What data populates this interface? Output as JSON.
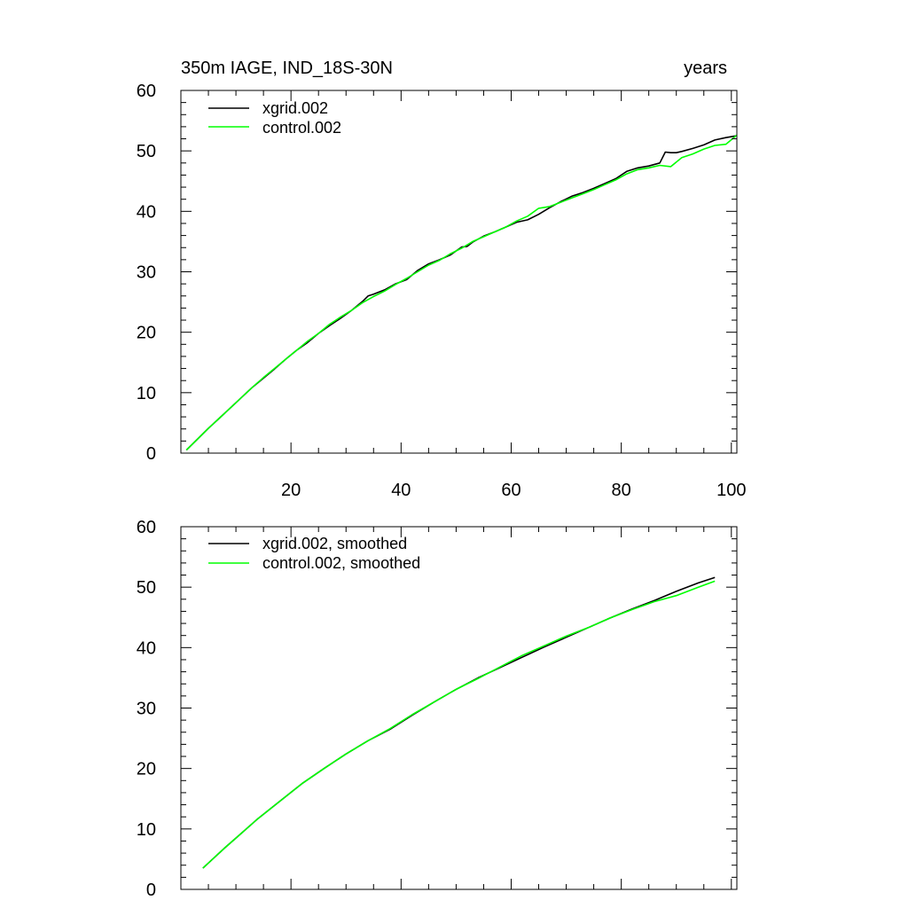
{
  "chart_data": [
    {
      "type": "line",
      "title_left": "350m IAGE, IND_18S-30N",
      "title_right": "years",
      "xlabel": "",
      "ylabel": "",
      "xlim": [
        0,
        101
      ],
      "ylim": [
        0,
        60
      ],
      "x_ticks": [
        20,
        40,
        60,
        80,
        100
      ],
      "x_tick_labels": [
        "20",
        "40",
        "60",
        "80",
        "100"
      ],
      "y_ticks": [
        0,
        10,
        20,
        30,
        40,
        50,
        60
      ],
      "y_tick_labels": [
        "0",
        "10",
        "20",
        "30",
        "40",
        "50",
        "60"
      ],
      "legend_position": "top-left",
      "series": [
        {
          "name": "xgrid.002",
          "color": "#000000",
          "x": [
            1,
            3,
            5,
            7,
            9,
            11,
            13,
            15,
            17,
            19,
            21,
            23,
            25,
            27,
            29,
            31,
            33,
            34,
            35,
            37,
            39,
            41,
            43,
            45,
            47,
            49,
            51,
            52,
            53,
            55,
            57,
            59,
            61,
            63,
            65,
            67,
            69,
            71,
            73,
            75,
            77,
            79,
            81,
            83,
            85,
            87,
            88,
            89,
            90,
            91,
            93,
            95,
            97,
            99,
            101
          ],
          "values": [
            0.5,
            2.3,
            4.1,
            5.8,
            7.5,
            9.2,
            10.9,
            12.4,
            13.9,
            15.5,
            17.0,
            18.3,
            19.8,
            21.1,
            22.3,
            23.6,
            25.1,
            26.0,
            26.3,
            27.0,
            28.0,
            28.7,
            30.2,
            31.3,
            32.0,
            32.8,
            34.1,
            34.2,
            34.9,
            35.9,
            36.6,
            37.4,
            38.2,
            38.6,
            39.5,
            40.6,
            41.6,
            42.5,
            43.1,
            43.8,
            44.6,
            45.4,
            46.6,
            47.2,
            47.5,
            48.0,
            49.8,
            49.7,
            49.7,
            49.9,
            50.4,
            51.0,
            51.8,
            52.2,
            52.5
          ]
        },
        {
          "name": "control.002",
          "color": "#00ff00",
          "x": [
            1,
            3,
            5,
            7,
            9,
            11,
            13,
            15,
            17,
            19,
            21,
            23,
            25,
            27,
            29,
            31,
            33,
            35,
            37,
            39,
            41,
            43,
            45,
            47,
            49,
            51,
            53,
            55,
            57,
            59,
            61,
            63,
            65,
            67,
            69,
            71,
            73,
            75,
            77,
            79,
            81,
            83,
            85,
            87,
            89,
            91,
            93,
            95,
            97,
            99,
            101
          ],
          "values": [
            0.5,
            2.3,
            4.1,
            5.8,
            7.5,
            9.2,
            10.9,
            12.5,
            14.0,
            15.5,
            17.0,
            18.5,
            19.8,
            21.3,
            22.5,
            23.6,
            24.9,
            25.9,
            26.8,
            27.9,
            28.9,
            30.0,
            31.1,
            31.9,
            33.0,
            33.9,
            35.0,
            35.8,
            36.6,
            37.4,
            38.4,
            39.2,
            40.5,
            40.8,
            41.5,
            42.2,
            42.9,
            43.6,
            44.4,
            45.2,
            46.2,
            46.9,
            47.2,
            47.6,
            47.4,
            48.9,
            49.5,
            50.3,
            50.9,
            51.1,
            52.6
          ]
        }
      ]
    },
    {
      "type": "line",
      "title_left": "",
      "title_right": "",
      "xlabel": "",
      "ylabel": "",
      "xlim": [
        0,
        101
      ],
      "ylim": [
        0,
        60
      ],
      "x_ticks": [
        20,
        40,
        60,
        80,
        100
      ],
      "x_tick_labels": [],
      "y_ticks": [
        0,
        10,
        20,
        30,
        40,
        50,
        60
      ],
      "y_tick_labels": [
        "0",
        "10",
        "20",
        "30",
        "40",
        "50",
        "60"
      ],
      "legend_position": "top-left",
      "series": [
        {
          "name": "xgrid.002, smoothed",
          "color": "#000000",
          "x": [
            4,
            6,
            8,
            10,
            14,
            18,
            22,
            26,
            30,
            34,
            38,
            42,
            46,
            50,
            54,
            58,
            62,
            66,
            70,
            74,
            78,
            82,
            86,
            90,
            94,
            97
          ],
          "values": [
            3.5,
            5.2,
            6.9,
            8.5,
            11.7,
            14.6,
            17.5,
            20.0,
            22.4,
            24.6,
            26.5,
            28.8,
            31.0,
            33.1,
            35.0,
            36.7,
            38.4,
            40.1,
            41.7,
            43.3,
            44.9,
            46.4,
            47.8,
            49.3,
            50.7,
            51.6
          ]
        },
        {
          "name": "control.002, smoothed",
          "color": "#00ff00",
          "x": [
            4,
            6,
            8,
            10,
            14,
            18,
            22,
            26,
            30,
            34,
            38,
            42,
            46,
            50,
            54,
            58,
            62,
            66,
            70,
            74,
            78,
            82,
            86,
            90,
            94,
            97
          ],
          "values": [
            3.5,
            5.2,
            6.9,
            8.5,
            11.7,
            14.6,
            17.5,
            20.0,
            22.4,
            24.6,
            26.6,
            28.9,
            31.0,
            33.1,
            34.9,
            36.8,
            38.7,
            40.3,
            41.9,
            43.3,
            44.9,
            46.3,
            47.6,
            48.6,
            50.0,
            51.0
          ]
        }
      ]
    }
  ]
}
